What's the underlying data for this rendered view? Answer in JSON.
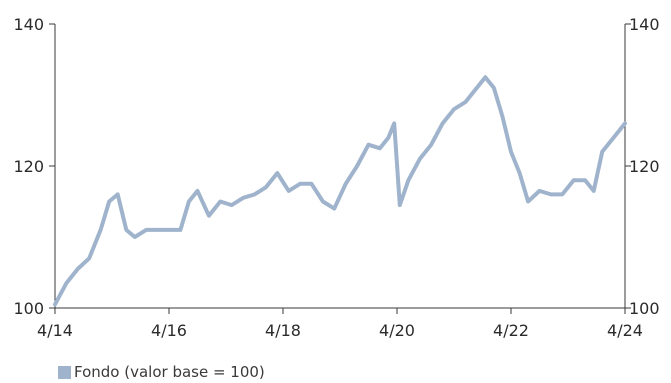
{
  "chart_data": {
    "type": "line",
    "title": "",
    "xlabel": "",
    "ylabel": "",
    "ylim": [
      100,
      140
    ],
    "y_ticks": [
      "100",
      "120",
      "140"
    ],
    "x_tick_labels": [
      "4/14",
      "4/16",
      "4/18",
      "4/20",
      "4/22",
      "4/24"
    ],
    "x_tick_years": [
      2014,
      2016,
      2018,
      2020,
      2022,
      2024
    ],
    "xlim": [
      2014,
      2024
    ],
    "grid": false,
    "legend_position": "bottom-left",
    "series": [
      {
        "name": "Fondo (valor base = 100)",
        "color": "#9fb4cc",
        "x": [
          2014.0,
          2014.2,
          2014.4,
          2014.6,
          2014.8,
          2014.95,
          2015.1,
          2015.25,
          2015.4,
          2015.6,
          2015.8,
          2016.0,
          2016.2,
          2016.35,
          2016.5,
          2016.7,
          2016.9,
          2017.1,
          2017.3,
          2017.5,
          2017.7,
          2017.9,
          2018.1,
          2018.3,
          2018.5,
          2018.7,
          2018.9,
          2019.1,
          2019.3,
          2019.5,
          2019.7,
          2019.85,
          2019.95,
          2020.05,
          2020.2,
          2020.4,
          2020.6,
          2020.8,
          2021.0,
          2021.2,
          2021.4,
          2021.55,
          2021.7,
          2021.85,
          2022.0,
          2022.15,
          2022.3,
          2022.5,
          2022.7,
          2022.9,
          2023.1,
          2023.3,
          2023.45,
          2023.6,
          2023.8,
          2024.0
        ],
        "values": [
          100.5,
          103.5,
          105.5,
          107,
          111,
          115,
          116,
          111,
          110,
          111,
          111,
          111,
          111,
          115,
          116.5,
          113,
          115,
          114.5,
          115.5,
          116,
          117,
          119,
          116.5,
          117.5,
          117.5,
          115,
          114,
          117.5,
          120,
          123,
          122.5,
          124,
          126,
          114.5,
          118,
          121,
          123,
          126,
          128,
          129,
          131,
          132.5,
          131,
          127,
          122,
          119,
          115,
          116.5,
          116,
          116,
          118,
          118,
          116.5,
          122,
          124,
          126
        ]
      }
    ]
  }
}
